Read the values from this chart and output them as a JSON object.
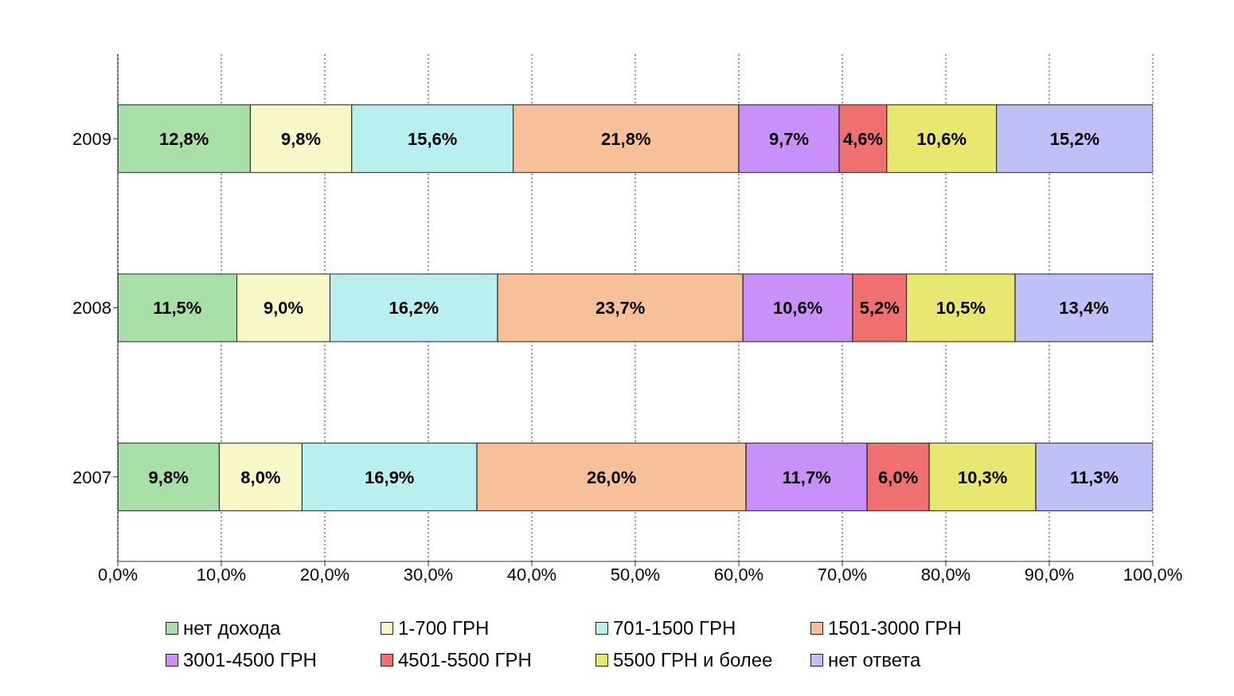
{
  "chart_data": {
    "type": "bar",
    "orientation": "horizontal",
    "stacked": true,
    "categories": [
      "2009",
      "2008",
      "2007"
    ],
    "series": [
      {
        "name": "нет дохода",
        "color": "#a8e0a8",
        "values": [
          12.8,
          11.5,
          9.8
        ],
        "value_labels": [
          "12,8%",
          "11,5%",
          "9,8%"
        ]
      },
      {
        "name": "1-700 ГРН",
        "color": "#f8f8c8",
        "values": [
          9.8,
          9.0,
          8.0
        ],
        "value_labels": [
          "9,8%",
          "9,0%",
          "8,0%"
        ]
      },
      {
        "name": "701-1500 ГРН",
        "color": "#b8f0f0",
        "values": [
          15.6,
          16.2,
          16.9
        ],
        "value_labels": [
          "15,6%",
          "16,2%",
          "16,9%"
        ]
      },
      {
        "name": "1501-3000 ГРН",
        "color": "#f8c098",
        "values": [
          21.8,
          23.7,
          26.0
        ],
        "value_labels": [
          "21,8%",
          "23,7%",
          "26,0%"
        ]
      },
      {
        "name": "3001-4500 ГРН",
        "color": "#c890f8",
        "values": [
          9.7,
          10.6,
          11.7
        ],
        "value_labels": [
          "9,7%",
          "10,6%",
          "11,7%"
        ]
      },
      {
        "name": "4501-5500 ГРН",
        "color": "#f07070",
        "values": [
          4.6,
          5.2,
          6.0
        ],
        "value_labels": [
          "4,6%",
          "5,2%",
          "6,0%"
        ]
      },
      {
        "name": "5500 ГРН и более",
        "color": "#e8e870",
        "values": [
          10.6,
          10.5,
          10.3
        ],
        "value_labels": [
          "10,6%",
          "10,5%",
          "10,3%"
        ]
      },
      {
        "name": "нет ответа",
        "color": "#c0c0f8",
        "values": [
          15.2,
          13.4,
          11.3
        ],
        "value_labels": [
          "15,2%",
          "13,4%",
          "11,3%"
        ]
      }
    ],
    "xlim": [
      0,
      100
    ],
    "xticks": [
      {
        "value": 0,
        "label": "0,0%"
      },
      {
        "value": 10,
        "label": "10,0%"
      },
      {
        "value": 20,
        "label": "20,0%"
      },
      {
        "value": 30,
        "label": "30,0%"
      },
      {
        "value": 40,
        "label": "40,0%"
      },
      {
        "value": 50,
        "label": "50,0%"
      },
      {
        "value": 60,
        "label": "60,0%"
      },
      {
        "value": 70,
        "label": "70,0%"
      },
      {
        "value": 80,
        "label": "80,0%"
      },
      {
        "value": 90,
        "label": "90,0%"
      },
      {
        "value": 100,
        "label": "100,0%"
      }
    ],
    "grid": "x",
    "legend": "bottom"
  }
}
